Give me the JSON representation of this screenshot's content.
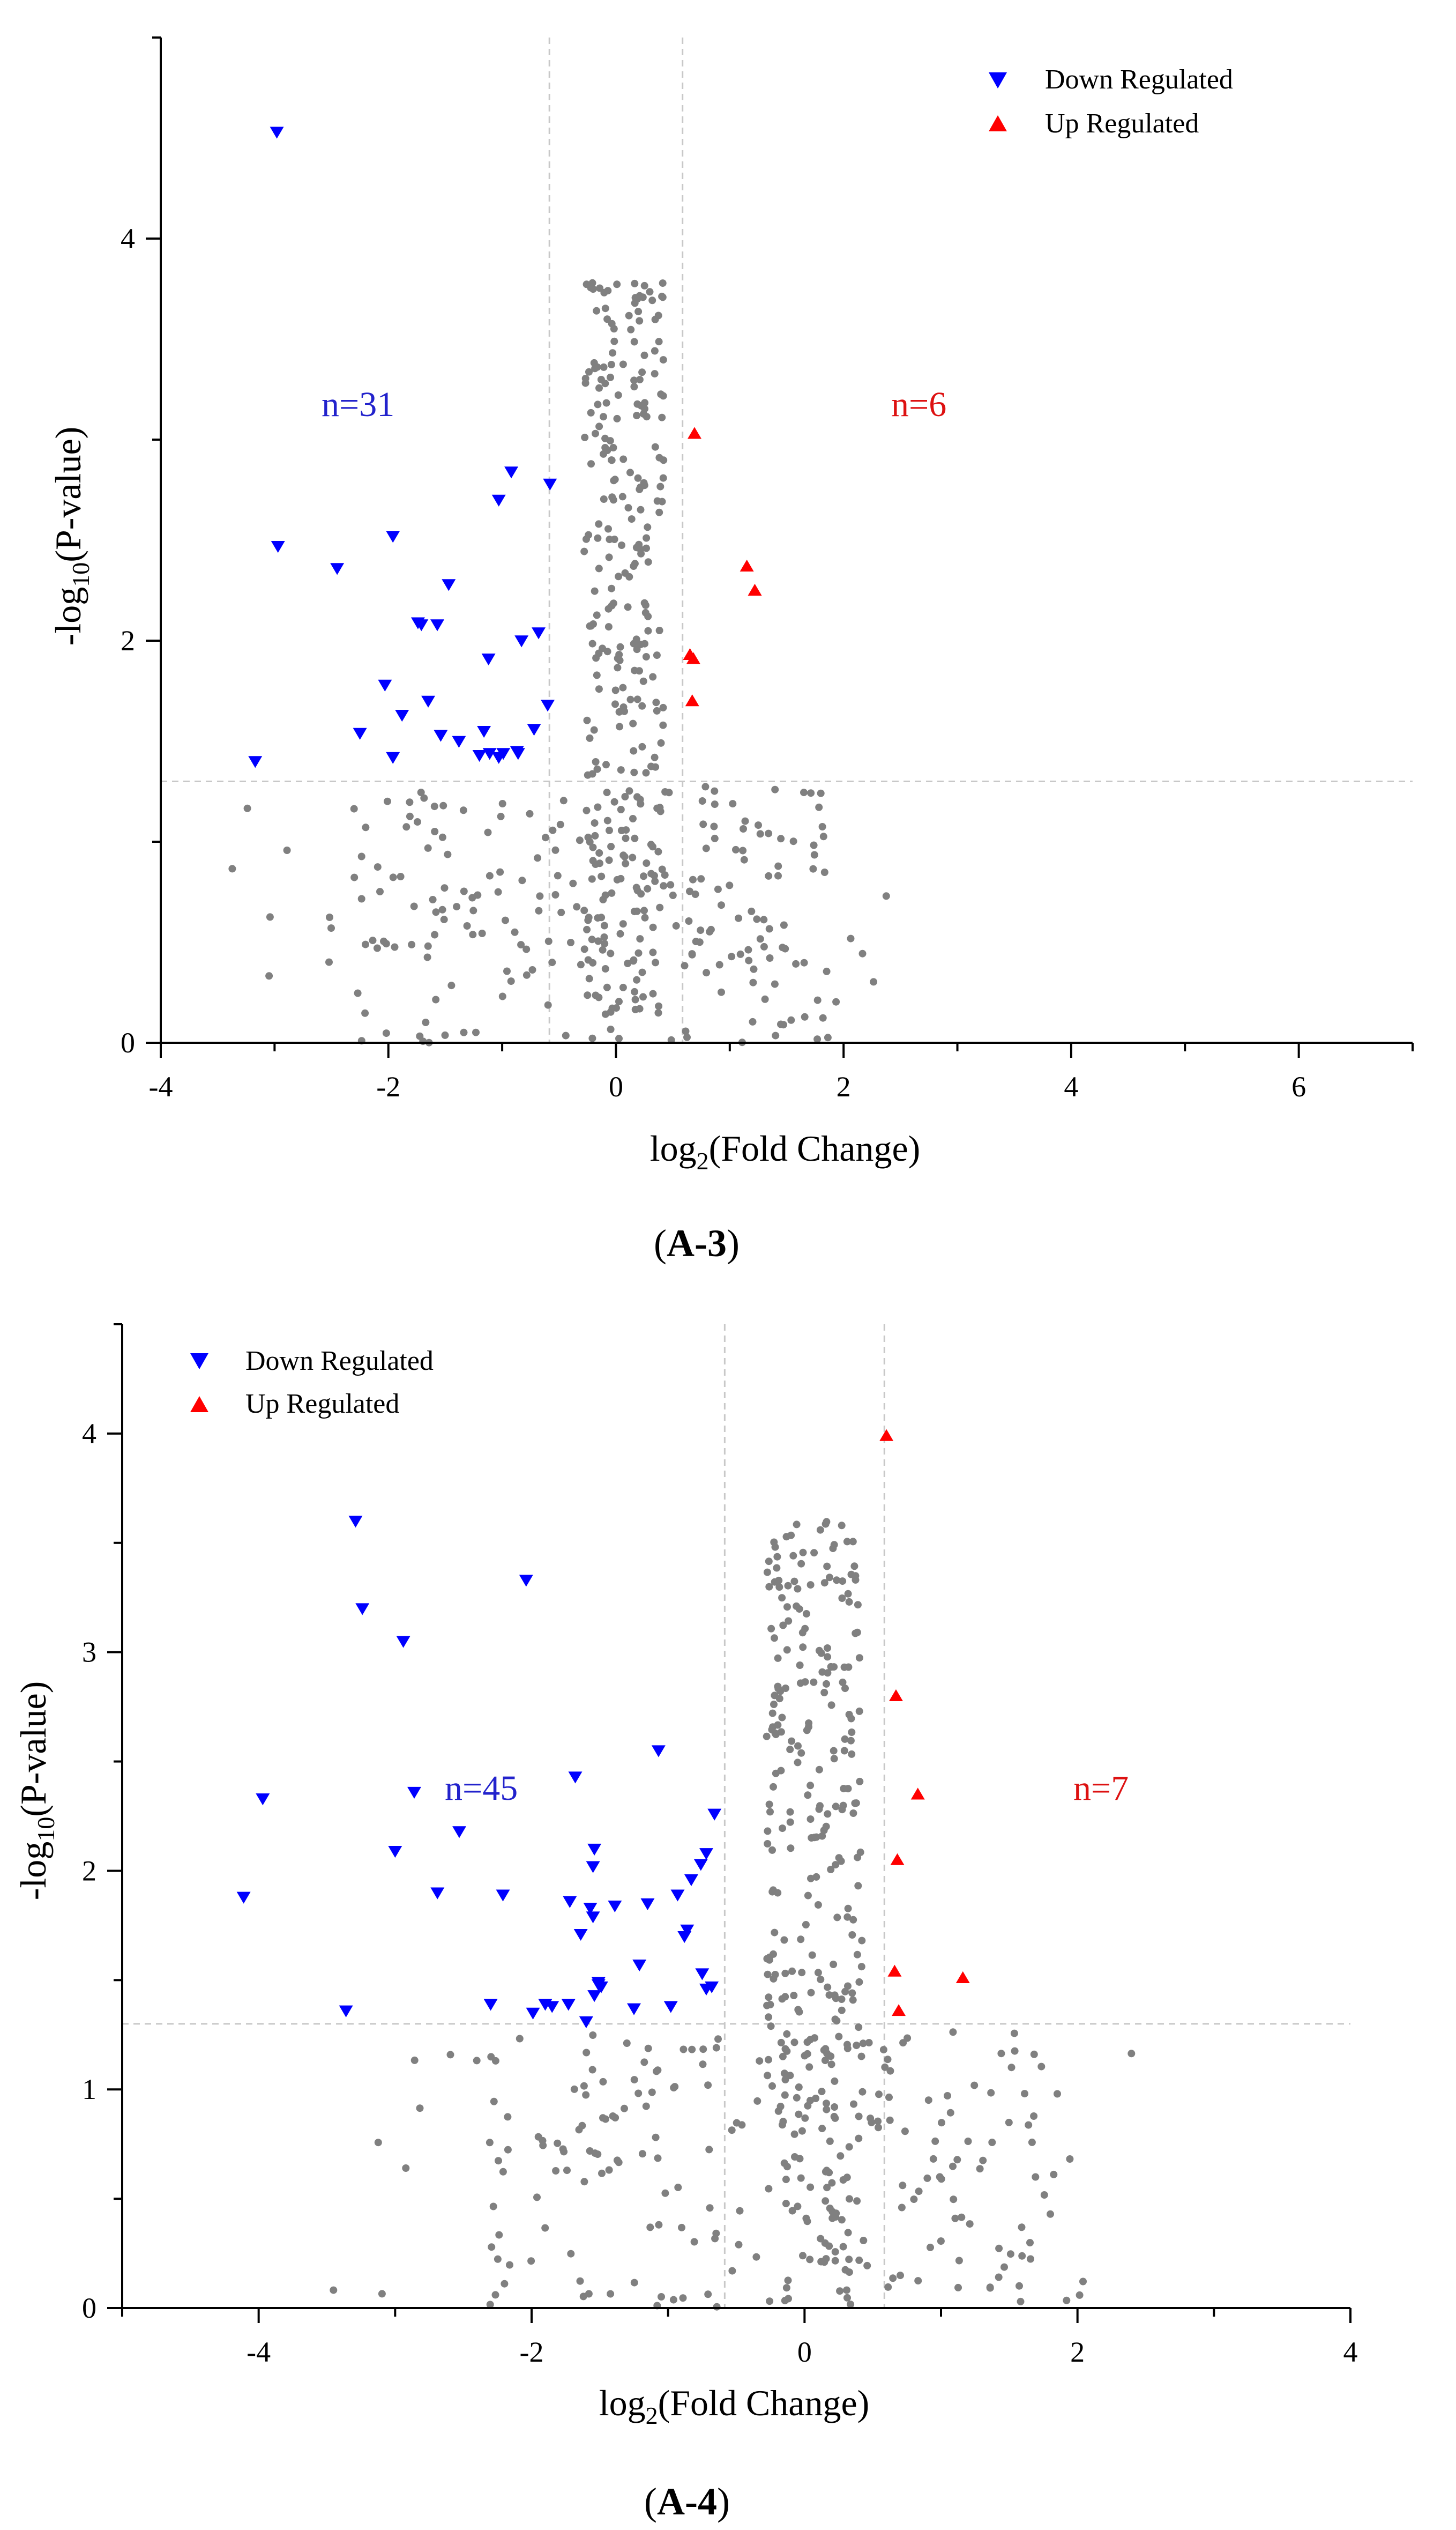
{
  "chart_data": [
    {
      "type": "scatter",
      "panel_label": "A-3",
      "xlabel": "log2(Fold Change)",
      "ylabel": "-log10(P-value)",
      "xlim": [
        -4,
        7
      ],
      "ylim": [
        0,
        5
      ],
      "xticks": [
        -4,
        -2,
        0,
        2,
        4,
        6
      ],
      "yticks": [
        0,
        2,
        4
      ],
      "xtick_labels": [
        "-4",
        "-2",
        "0",
        "2",
        "4",
        "6"
      ],
      "ytick_labels": [
        "0",
        "2",
        "4"
      ],
      "thresholds": {
        "fc_low": -0.585,
        "fc_high": 0.585,
        "p": 1.3
      },
      "legend": [
        "Down Regulated",
        "Up Regulated"
      ],
      "annotations": {
        "down_count": "n=31",
        "up_count": "n=6"
      },
      "colors": {
        "down": "#0000ff",
        "up": "#ff0000",
        "ns": "#808080",
        "guide": "#c8c8c8"
      },
      "series": [
        {
          "name": "Down Regulated",
          "marker": "triangle-down",
          "x": [
            -2.98,
            -2.97,
            -2.45,
            -1.96,
            -0.92,
            -1.03,
            -0.58,
            -1.47,
            -1.74,
            -1.71,
            -1.57,
            -0.83,
            -0.68,
            -1.12,
            -2.03,
            -1.88,
            -1.65,
            -2.25,
            -1.54,
            -1.38,
            -1.11,
            -0.99,
            -0.87,
            -0.86,
            -3.17,
            -1.96,
            -0.6,
            -0.72,
            -1.16,
            -1.03,
            -1.2
          ],
          "y": [
            4.53,
            2.47,
            2.36,
            2.52,
            2.84,
            2.7,
            2.78,
            2.28,
            2.09,
            2.08,
            2.08,
            2.0,
            2.04,
            1.91,
            1.78,
            1.63,
            1.7,
            1.54,
            1.53,
            1.5,
            1.44,
            1.44,
            1.45,
            1.44,
            1.4,
            1.42,
            1.68,
            1.56,
            1.55,
            1.42,
            1.43
          ]
        },
        {
          "name": "Up Regulated",
          "marker": "triangle-up",
          "x": [
            0.69,
            1.15,
            1.22,
            0.65,
            0.68,
            0.67
          ],
          "y": [
            3.03,
            2.37,
            2.25,
            1.93,
            1.91,
            1.7
          ]
        }
      ]
    },
    {
      "type": "scatter",
      "panel_label": "A-4",
      "xlabel": "log2(Fold Change)",
      "ylabel": "-log10(P-value)",
      "xlim": [
        -5,
        4
      ],
      "ylim": [
        0,
        4.5
      ],
      "xticks": [
        -4,
        -2,
        0,
        2,
        4
      ],
      "yticks": [
        0,
        1,
        2,
        3,
        4
      ],
      "xtick_labels": [
        "-4",
        "-2",
        "0",
        "2",
        "4"
      ],
      "ytick_labels": [
        "0",
        "1",
        "2",
        "3",
        "4"
      ],
      "thresholds": {
        "fc_low": -0.585,
        "fc_high": 0.585,
        "p": 1.3
      },
      "legend": [
        "Down Regulated",
        "Up Regulated"
      ],
      "annotations": {
        "down_count": "n=45",
        "up_count": "n=7"
      },
      "colors": {
        "down": "#0000ff",
        "up": "#ff0000",
        "ns": "#808080",
        "guide": "#c8c8c8"
      },
      "series": [
        {
          "name": "Down Regulated",
          "marker": "triangle-down",
          "x": [
            -3.29,
            -3.24,
            -2.94,
            -2.04,
            -1.07,
            -4.11,
            -3.97,
            -3.36,
            -3.0,
            -2.86,
            -2.69,
            -2.53,
            -2.3,
            -2.21,
            -1.99,
            -1.9,
            -1.85,
            -1.68,
            -1.55,
            -1.57,
            -1.55,
            -1.54,
            -1.51,
            -1.39,
            -1.21,
            -1.25,
            -1.15,
            -0.98,
            -0.66,
            -0.72,
            -0.76,
            -0.83,
            -0.86,
            -0.88,
            -0.93,
            -1.64,
            -1.72,
            -1.73,
            -1.6,
            -1.54,
            -1.51,
            -1.49,
            -0.75,
            -0.72,
            -0.68
          ],
          "y": [
            3.6,
            3.2,
            3.05,
            3.33,
            2.55,
            1.88,
            2.33,
            1.36,
            2.09,
            2.36,
            1.9,
            2.18,
            1.39,
            1.89,
            1.35,
            1.39,
            1.38,
            2.43,
            2.02,
            1.83,
            1.79,
            2.1,
            1.48,
            1.84,
            1.57,
            1.37,
            1.85,
            1.38,
            2.26,
            2.08,
            2.03,
            1.96,
            1.73,
            1.7,
            1.89,
            1.71,
            1.86,
            1.39,
            1.31,
            1.43,
            1.49,
            1.47,
            1.53,
            1.46,
            1.47
          ]
        },
        {
          "name": "Up Regulated",
          "marker": "triangle-up",
          "x": [
            0.6,
            0.67,
            0.83,
            0.68,
            1.16,
            0.66,
            0.69
          ],
          "y": [
            3.99,
            2.8,
            2.35,
            2.05,
            1.51,
            1.54,
            1.36
          ]
        }
      ]
    }
  ]
}
